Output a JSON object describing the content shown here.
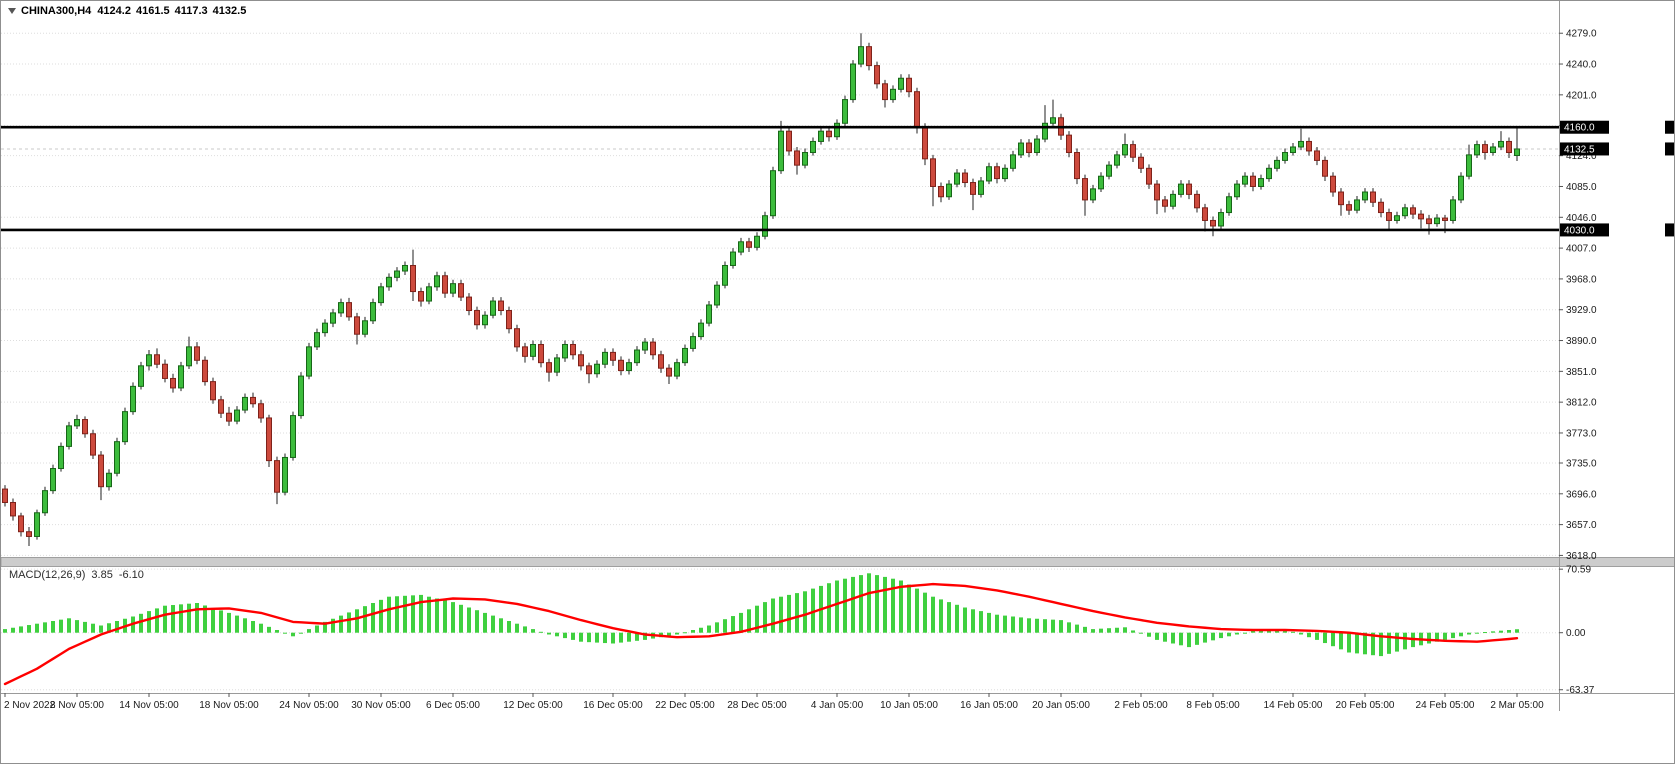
{
  "header": {
    "symbol_period": "CHINA300,H4",
    "open": "4124.2",
    "high": "4161.5",
    "low": "4117.3",
    "close": "4132.5"
  },
  "price_axis": {
    "labels": [
      "4279.0",
      "4240.0",
      "4201.0",
      "4162.0",
      "4124.0",
      "4085.0",
      "4046.0",
      "4007.0",
      "3968.0",
      "3929.0",
      "3890.0",
      "3851.0",
      "3812.0",
      "3773.0",
      "3735.0",
      "3696.0",
      "3657.0",
      "3618.0"
    ],
    "tags": [
      {
        "label": "4160.0",
        "price": 4160.0
      },
      {
        "label": "4132.5",
        "price": 4132.5
      },
      {
        "label": "4030.0",
        "price": 4030.0
      }
    ]
  },
  "macd": {
    "label": "MACD(12,26,9)",
    "main": "3.85",
    "signal": "-6.10",
    "axis_labels": [
      "70.59",
      "0.00",
      "-63.37"
    ]
  },
  "time_axis": [
    {
      "label": "2 Nov 2022",
      "i": 0
    },
    {
      "label": "8 Nov 05:00",
      "i": 9
    },
    {
      "label": "14 Nov 05:00",
      "i": 18
    },
    {
      "label": "18 Nov 05:00",
      "i": 28
    },
    {
      "label": "24 Nov 05:00",
      "i": 38
    },
    {
      "label": "30 Nov 05:00",
      "i": 47
    },
    {
      "label": "6 Dec 05:00",
      "i": 56
    },
    {
      "label": "12 Dec 05:00",
      "i": 66
    },
    {
      "label": "16 Dec 05:00",
      "i": 76
    },
    {
      "label": "22 Dec 05:00",
      "i": 85
    },
    {
      "label": "28 Dec 05:00",
      "i": 94
    },
    {
      "label": "4 Jan 05:00",
      "i": 104
    },
    {
      "label": "10 Jan 05:00",
      "i": 113
    },
    {
      "label": "16 Jan 05:00",
      "i": 123
    },
    {
      "label": "20 Jan 05:00",
      "i": 132
    },
    {
      "label": "2 Feb 05:00",
      "i": 142
    },
    {
      "label": "8 Feb 05:00",
      "i": 151
    },
    {
      "label": "14 Feb 05:00",
      "i": 161
    },
    {
      "label": "20 Feb 05:00",
      "i": 170
    },
    {
      "label": "24 Feb 05:00",
      "i": 180
    },
    {
      "label": "2 Mar 05:00",
      "i": 189
    }
  ],
  "chart_data": {
    "type": "candlestick",
    "symbol": "CHINA300",
    "timeframe": "H4",
    "price_range": [
      3616,
      4297
    ],
    "hlines": [
      4160.0,
      4030.0
    ],
    "current_bar": {
      "open": 4124.2,
      "high": 4161.5,
      "low": 4117.3,
      "close": 4132.5
    },
    "candles": [
      [
        3702,
        3707,
        3680,
        3685
      ],
      [
        3685,
        3690,
        3662,
        3668
      ],
      [
        3668,
        3672,
        3642,
        3648
      ],
      [
        3648,
        3654,
        3630,
        3642
      ],
      [
        3642,
        3676,
        3638,
        3672
      ],
      [
        3672,
        3705,
        3668,
        3700
      ],
      [
        3700,
        3733,
        3696,
        3728
      ],
      [
        3728,
        3761,
        3724,
        3756
      ],
      [
        3756,
        3787,
        3752,
        3782
      ],
      [
        3782,
        3796,
        3778,
        3790
      ],
      [
        3790,
        3794,
        3767,
        3772
      ],
      [
        3772,
        3777,
        3740,
        3745
      ],
      [
        3745,
        3750,
        3688,
        3705
      ],
      [
        3705,
        3727,
        3700,
        3722
      ],
      [
        3722,
        3767,
        3718,
        3762
      ],
      [
        3762,
        3805,
        3758,
        3800
      ],
      [
        3800,
        3837,
        3796,
        3832
      ],
      [
        3832,
        3863,
        3828,
        3858
      ],
      [
        3858,
        3878,
        3852,
        3872
      ],
      [
        3872,
        3880,
        3855,
        3860
      ],
      [
        3860,
        3866,
        3837,
        3842
      ],
      [
        3842,
        3848,
        3824,
        3830
      ],
      [
        3830,
        3863,
        3826,
        3858
      ],
      [
        3858,
        3895,
        3854,
        3882
      ],
      [
        3882,
        3888,
        3860,
        3865
      ],
      [
        3865,
        3870,
        3833,
        3838
      ],
      [
        3838,
        3843,
        3810,
        3815
      ],
      [
        3815,
        3820,
        3792,
        3798
      ],
      [
        3798,
        3806,
        3782,
        3788
      ],
      [
        3788,
        3807,
        3784,
        3802
      ],
      [
        3802,
        3823,
        3798,
        3818
      ],
      [
        3818,
        3824,
        3805,
        3810
      ],
      [
        3810,
        3815,
        3786,
        3792
      ],
      [
        3792,
        3796,
        3730,
        3738
      ],
      [
        3738,
        3743,
        3683,
        3698
      ],
      [
        3698,
        3747,
        3694,
        3742
      ],
      [
        3742,
        3800,
        3738,
        3795
      ],
      [
        3795,
        3850,
        3791,
        3845
      ],
      [
        3845,
        3887,
        3841,
        3882
      ],
      [
        3882,
        3905,
        3878,
        3900
      ],
      [
        3900,
        3917,
        3895,
        3912
      ],
      [
        3912,
        3930,
        3907,
        3925
      ],
      [
        3925,
        3943,
        3920,
        3938
      ],
      [
        3938,
        3944,
        3915,
        3920
      ],
      [
        3920,
        3925,
        3885,
        3898
      ],
      [
        3898,
        3920,
        3894,
        3915
      ],
      [
        3915,
        3943,
        3911,
        3938
      ],
      [
        3938,
        3963,
        3934,
        3958
      ],
      [
        3958,
        3975,
        3953,
        3970
      ],
      [
        3970,
        3983,
        3965,
        3978
      ],
      [
        3978,
        3990,
        3973,
        3985
      ],
      [
        3985,
        4005,
        3940,
        3952
      ],
      [
        3952,
        3957,
        3933,
        3940
      ],
      [
        3940,
        3963,
        3936,
        3958
      ],
      [
        3958,
        3977,
        3953,
        3972
      ],
      [
        3972,
        3977,
        3944,
        3950
      ],
      [
        3950,
        3967,
        3945,
        3962
      ],
      [
        3962,
        3967,
        3940,
        3945
      ],
      [
        3945,
        3950,
        3922,
        3928
      ],
      [
        3928,
        3933,
        3904,
        3910
      ],
      [
        3910,
        3927,
        3905,
        3922
      ],
      [
        3922,
        3945,
        3918,
        3940
      ],
      [
        3940,
        3945,
        3922,
        3928
      ],
      [
        3928,
        3933,
        3899,
        3905
      ],
      [
        3905,
        3910,
        3876,
        3882
      ],
      [
        3882,
        3887,
        3862,
        3870
      ],
      [
        3870,
        3890,
        3865,
        3885
      ],
      [
        3885,
        3890,
        3856,
        3862
      ],
      [
        3862,
        3867,
        3838,
        3850
      ],
      [
        3850,
        3873,
        3845,
        3868
      ],
      [
        3868,
        3890,
        3863,
        3885
      ],
      [
        3885,
        3890,
        3866,
        3872
      ],
      [
        3872,
        3877,
        3852,
        3858
      ],
      [
        3858,
        3862,
        3836,
        3848
      ],
      [
        3848,
        3865,
        3843,
        3860
      ],
      [
        3860,
        3880,
        3855,
        3875
      ],
      [
        3875,
        3880,
        3858,
        3865
      ],
      [
        3865,
        3870,
        3846,
        3852
      ],
      [
        3852,
        3867,
        3847,
        3862
      ],
      [
        3862,
        3883,
        3858,
        3878
      ],
      [
        3878,
        3893,
        3873,
        3888
      ],
      [
        3888,
        3893,
        3866,
        3872
      ],
      [
        3872,
        3877,
        3849,
        3855
      ],
      [
        3855,
        3860,
        3835,
        3845
      ],
      [
        3845,
        3867,
        3841,
        3862
      ],
      [
        3862,
        3885,
        3858,
        3880
      ],
      [
        3880,
        3900,
        3876,
        3895
      ],
      [
        3895,
        3917,
        3891,
        3912
      ],
      [
        3912,
        3940,
        3908,
        3935
      ],
      [
        3935,
        3965,
        3931,
        3960
      ],
      [
        3960,
        3990,
        3956,
        3985
      ],
      [
        3985,
        4007,
        3981,
        4002
      ],
      [
        4002,
        4020,
        3998,
        4015
      ],
      [
        4015,
        4020,
        4002,
        4008
      ],
      [
        4008,
        4027,
        4004,
        4022
      ],
      [
        4022,
        4053,
        4018,
        4048
      ],
      [
        4048,
        4110,
        4044,
        4105
      ],
      [
        4105,
        4168,
        4101,
        4155
      ],
      [
        4155,
        4160,
        4124,
        4130
      ],
      [
        4130,
        4135,
        4100,
        4112
      ],
      [
        4112,
        4133,
        4108,
        4128
      ],
      [
        4128,
        4147,
        4124,
        4142
      ],
      [
        4142,
        4160,
        4138,
        4155
      ],
      [
        4155,
        4161,
        4142,
        4148
      ],
      [
        4148,
        4170,
        4144,
        4165
      ],
      [
        4165,
        4200,
        4161,
        4195
      ],
      [
        4195,
        4245,
        4191,
        4240
      ],
      [
        4240,
        4279,
        4236,
        4262
      ],
      [
        4262,
        4267,
        4232,
        4238
      ],
      [
        4238,
        4243,
        4209,
        4215
      ],
      [
        4215,
        4220,
        4185,
        4195
      ],
      [
        4195,
        4213,
        4191,
        4208
      ],
      [
        4208,
        4227,
        4204,
        4222
      ],
      [
        4222,
        4227,
        4198,
        4205
      ],
      [
        4205,
        4210,
        4152,
        4160
      ],
      [
        4160,
        4165,
        4112,
        4120
      ],
      [
        4120,
        4125,
        4060,
        4085
      ],
      [
        4085,
        4090,
        4065,
        4072
      ],
      [
        4072,
        4093,
        4068,
        4088
      ],
      [
        4088,
        4107,
        4084,
        4102
      ],
      [
        4102,
        4107,
        4084,
        4090
      ],
      [
        4090,
        4095,
        4055,
        4075
      ],
      [
        4075,
        4097,
        4071,
        4092
      ],
      [
        4092,
        4115,
        4088,
        4110
      ],
      [
        4110,
        4115,
        4089,
        4095
      ],
      [
        4095,
        4113,
        4091,
        4108
      ],
      [
        4108,
        4130,
        4104,
        4125
      ],
      [
        4125,
        4145,
        4121,
        4140
      ],
      [
        4140,
        4145,
        4122,
        4128
      ],
      [
        4128,
        4150,
        4124,
        4145
      ],
      [
        4145,
        4188,
        4141,
        4165
      ],
      [
        4165,
        4195,
        4161,
        4172
      ],
      [
        4172,
        4177,
        4144,
        4150
      ],
      [
        4150,
        4155,
        4122,
        4128
      ],
      [
        4128,
        4133,
        4088,
        4095
      ],
      [
        4095,
        4100,
        4048,
        4068
      ],
      [
        4068,
        4087,
        4064,
        4082
      ],
      [
        4082,
        4103,
        4078,
        4098
      ],
      [
        4098,
        4117,
        4094,
        4112
      ],
      [
        4112,
        4130,
        4108,
        4125
      ],
      [
        4125,
        4152,
        4121,
        4138
      ],
      [
        4138,
        4143,
        4116,
        4122
      ],
      [
        4122,
        4127,
        4102,
        4108
      ],
      [
        4108,
        4113,
        4082,
        4088
      ],
      [
        4088,
        4093,
        4050,
        4068
      ],
      [
        4068,
        4073,
        4052,
        4060
      ],
      [
        4060,
        4080,
        4056,
        4075
      ],
      [
        4075,
        4093,
        4071,
        4088
      ],
      [
        4088,
        4093,
        4069,
        4075
      ],
      [
        4075,
        4080,
        4052,
        4058
      ],
      [
        4058,
        4063,
        4028,
        4042
      ],
      [
        4042,
        4047,
        4022,
        4035
      ],
      [
        4035,
        4057,
        4031,
        4052
      ],
      [
        4052,
        4077,
        4048,
        4072
      ],
      [
        4072,
        4093,
        4068,
        4088
      ],
      [
        4088,
        4103,
        4084,
        4098
      ],
      [
        4098,
        4103,
        4079,
        4085
      ],
      [
        4085,
        4100,
        4081,
        4095
      ],
      [
        4095,
        4113,
        4091,
        4108
      ],
      [
        4108,
        4123,
        4104,
        4118
      ],
      [
        4118,
        4133,
        4114,
        4128
      ],
      [
        4128,
        4140,
        4124,
        4135
      ],
      [
        4135,
        4158,
        4131,
        4142
      ],
      [
        4142,
        4147,
        4124,
        4130
      ],
      [
        4130,
        4135,
        4112,
        4118
      ],
      [
        4118,
        4123,
        4092,
        4098
      ],
      [
        4098,
        4103,
        4072,
        4078
      ],
      [
        4078,
        4083,
        4048,
        4062
      ],
      [
        4062,
        4067,
        4049,
        4055
      ],
      [
        4055,
        4073,
        4051,
        4068
      ],
      [
        4068,
        4083,
        4064,
        4078
      ],
      [
        4078,
        4083,
        4059,
        4065
      ],
      [
        4065,
        4070,
        4046,
        4052
      ],
      [
        4052,
        4057,
        4030,
        4042
      ],
      [
        4042,
        4053,
        4038,
        4048
      ],
      [
        4048,
        4063,
        4044,
        4058
      ],
      [
        4058,
        4062,
        4044,
        4050
      ],
      [
        4050,
        4055,
        4032,
        4044
      ],
      [
        4044,
        4049,
        4024,
        4038
      ],
      [
        4038,
        4050,
        4034,
        4045
      ],
      [
        4045,
        4049,
        4026,
        4042
      ],
      [
        4042,
        4073,
        4038,
        4068
      ],
      [
        4068,
        4103,
        4064,
        4098
      ],
      [
        4098,
        4138,
        4094,
        4125
      ],
      [
        4125,
        4143,
        4121,
        4138
      ],
      [
        4138,
        4143,
        4119,
        4128
      ],
      [
        4128,
        4140,
        4124,
        4135
      ],
      [
        4135,
        4155,
        4131,
        4142
      ],
      [
        4142,
        4147,
        4121,
        4128
      ],
      [
        4124.2,
        4161.5,
        4117.3,
        4132.5
      ]
    ],
    "indicator": {
      "type": "MACD",
      "params": [
        12,
        26,
        9
      ],
      "current_main": 3.85,
      "current_signal": -6.1,
      "range": [
        -67,
        73
      ],
      "series_anchors": [
        [
          0,
          4,
          -57
        ],
        [
          4,
          10,
          -40
        ],
        [
          8,
          16,
          -18
        ],
        [
          12,
          8,
          -2
        ],
        [
          16,
          18,
          10
        ],
        [
          20,
          30,
          20
        ],
        [
          24,
          33,
          26
        ],
        [
          28,
          22,
          27
        ],
        [
          32,
          10,
          22
        ],
        [
          36,
          -4,
          12
        ],
        [
          40,
          12,
          10
        ],
        [
          44,
          26,
          16
        ],
        [
          48,
          40,
          26
        ],
        [
          52,
          42,
          34
        ],
        [
          56,
          34,
          38
        ],
        [
          60,
          22,
          37
        ],
        [
          64,
          10,
          32
        ],
        [
          68,
          -2,
          24
        ],
        [
          72,
          -10,
          14
        ],
        [
          76,
          -12,
          5
        ],
        [
          80,
          -8,
          -2
        ],
        [
          84,
          -2,
          -5
        ],
        [
          88,
          8,
          -4
        ],
        [
          92,
          22,
          1
        ],
        [
          96,
          38,
          10
        ],
        [
          100,
          46,
          20
        ],
        [
          104,
          58,
          32
        ],
        [
          108,
          66,
          44
        ],
        [
          112,
          58,
          51
        ],
        [
          116,
          40,
          54
        ],
        [
          120,
          28,
          52
        ],
        [
          124,
          20,
          47
        ],
        [
          128,
          16,
          40
        ],
        [
          132,
          14,
          32
        ],
        [
          136,
          4,
          24
        ],
        [
          140,
          6,
          17
        ],
        [
          144,
          -8,
          11
        ],
        [
          148,
          -16,
          7
        ],
        [
          152,
          -6,
          4
        ],
        [
          156,
          2,
          3
        ],
        [
          160,
          4,
          3
        ],
        [
          164,
          -8,
          2
        ],
        [
          168,
          -22,
          0
        ],
        [
          172,
          -26,
          -4
        ],
        [
          176,
          -16,
          -7
        ],
        [
          180,
          -8,
          -9
        ],
        [
          184,
          0,
          -10
        ],
        [
          188,
          3,
          -7
        ],
        [
          189,
          3.85,
          -6.1
        ]
      ]
    }
  },
  "colors": {
    "up_fill": "#3cbc3c",
    "up_stroke": "#176617",
    "down_fill": "#cd4a3d",
    "down_stroke": "#7e221a",
    "wick": "#222222",
    "hist": "#3fd03f",
    "signal": "#ff0000",
    "grid": "#dedede",
    "axis_text": "#1a1a1a",
    "hline": "#000000",
    "bid_line": "#c8c8c8",
    "tag_bg": "#000000",
    "tag_text": "#ffffff",
    "splitter_fill": "#cccccc",
    "splitter_edge": "#9f9f9f"
  }
}
